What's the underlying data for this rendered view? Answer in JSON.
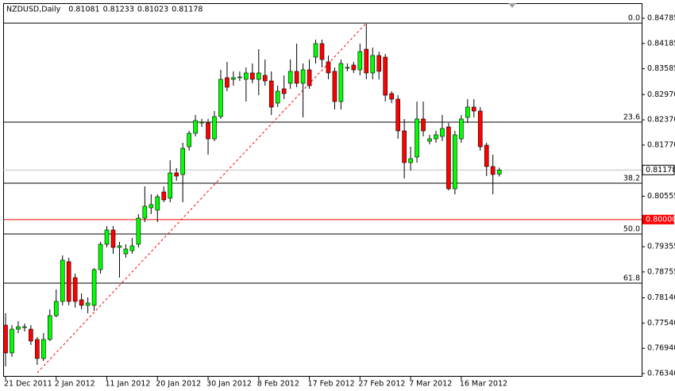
{
  "chart_data": {
    "type": "candlestick",
    "title": "NZDUSD,Daily",
    "header_ohlc": [
      0.81081,
      0.81233,
      0.81023,
      0.81178
    ],
    "categories": [
      "21 Dec 2011",
      null,
      null,
      null,
      null,
      null,
      null,
      null,
      "2 Jan 2012",
      null,
      null,
      null,
      null,
      null,
      null,
      null,
      "11 Jan 2012",
      null,
      null,
      null,
      null,
      null,
      null,
      null,
      "20 Jan 2012",
      null,
      null,
      null,
      null,
      null,
      null,
      null,
      "30 Jan 2012",
      null,
      null,
      null,
      null,
      null,
      null,
      null,
      "8 Feb 2012",
      null,
      null,
      null,
      null,
      null,
      null,
      null,
      "17 Feb 2012",
      null,
      null,
      null,
      null,
      null,
      null,
      null,
      "27 Feb 2012",
      null,
      null,
      null,
      null,
      null,
      null,
      null,
      "7 Mar 2012",
      null,
      null,
      null,
      null,
      null,
      null,
      null,
      "16 Mar 2012",
      null,
      null,
      null,
      null,
      null,
      null
    ],
    "open": [
      0.7749,
      0.7683,
      0.77395,
      0.77433,
      0.77395,
      0.7715,
      0.76698,
      0.7715,
      0.77716,
      0.78055,
      0.78998,
      0.7862,
      0.78093,
      0.77961,
      0.77961,
      0.78809,
      0.79412,
      0.79752,
      0.79337,
      0.79186,
      0.79261,
      0.79412,
      0.80034,
      0.80279,
      0.80223,
      0.80656,
      0.80506,
      0.81109,
      0.81071,
      0.81731,
      0.82051,
      0.82296,
      0.82296,
      0.81919,
      0.82447,
      0.83371,
      0.83333,
      0.83371,
      0.83333,
      0.83484,
      0.83333,
      0.83427,
      0.83295,
      0.82768,
      0.83107,
      0.83239,
      0.83522,
      0.83239,
      0.83559,
      0.83861,
      0.84181,
      0.83748,
      0.83522,
      0.82805,
      0.83597,
      0.83672,
      0.83559,
      0.84049,
      0.83484,
      0.83899,
      0.83861,
      0.82994,
      0.82862,
      0.82108,
      0.81354,
      0.81486,
      0.82391,
      0.81863,
      0.81919,
      0.81976,
      0.82202,
      0.80732,
      0.81919,
      0.82428,
      0.82673,
      0.82579,
      0.81768,
      0.8126,
      0.81081
    ],
    "high": [
      0.77772,
      0.7749,
      0.77584,
      0.77527,
      0.7749,
      0.77207,
      0.77301,
      0.77867,
      0.78338,
      0.79148,
      0.79092,
      0.78715,
      0.78244,
      0.78149,
      0.78847,
      0.79469,
      0.79846,
      0.79846,
      0.79469,
      0.79412,
      0.79563,
      0.80129,
      0.80788,
      0.806,
      0.806,
      0.80788,
      0.8141,
      0.81222,
      0.81825,
      0.82108,
      0.82485,
      0.82391,
      0.82391,
      0.82579,
      0.83559,
      0.83748,
      0.83522,
      0.83522,
      0.83616,
      0.8371,
      0.84049,
      0.83804,
      0.83522,
      0.83182,
      0.83427,
      0.83804,
      0.84181,
      0.8371,
      0.83804,
      0.84276,
      0.84276,
      0.83899,
      0.83616,
      0.83804,
      0.8371,
      0.83748,
      0.84181,
      0.84653,
      0.84087,
      0.83993,
      0.83936,
      0.8305,
      0.82956,
      0.82391,
      0.81731,
      0.82805,
      0.82805,
      0.82014,
      0.82108,
      0.82485,
      0.82296,
      0.82108,
      0.82485,
      0.82862,
      0.82862,
      0.82673,
      0.81825,
      0.81542,
      0.81233
    ],
    "low": [
      0.76509,
      0.76736,
      0.77301,
      0.77339,
      0.77018,
      0.76548,
      0.76641,
      0.77113,
      0.77678,
      0.77961,
      0.77961,
      0.77904,
      0.77867,
      0.77772,
      0.77829,
      0.78715,
      0.79337,
      0.79186,
      0.7862,
      0.79092,
      0.79186,
      0.79337,
      0.7994,
      0.80129,
      0.7994,
      0.80411,
      0.80411,
      0.8092,
      0.80411,
      0.81637,
      0.81976,
      0.82202,
      0.81542,
      0.81863,
      0.82391,
      0.8305,
      0.83182,
      0.83295,
      0.82805,
      0.83239,
      0.82956,
      0.83182,
      0.82485,
      0.82673,
      0.82862,
      0.83107,
      0.83145,
      0.82428,
      0.83107,
      0.8371,
      0.83616,
      0.83333,
      0.82617,
      0.82617,
      0.83522,
      0.83484,
      0.83427,
      0.83333,
      0.83333,
      0.83333,
      0.82805,
      0.82768,
      0.81919,
      0.80977,
      0.81165,
      0.81354,
      0.81976,
      0.81787,
      0.81825,
      0.81863,
      0.80694,
      0.806,
      0.81825,
      0.82296,
      0.82428,
      0.81637,
      0.81033,
      0.806,
      0.81023
    ],
    "close": [
      0.7683,
      0.77395,
      0.77452,
      0.77452,
      0.77113,
      0.76698,
      0.7715,
      0.77716,
      0.78055,
      0.79035,
      0.78055,
      0.78055,
      0.77961,
      0.78017,
      0.78809,
      0.79412,
      0.79752,
      0.79337,
      0.79375,
      0.79299,
      0.79375,
      0.80034,
      0.80317,
      0.80355,
      0.80543,
      0.80468,
      0.81109,
      0.81033,
      0.81693,
      0.82051,
      0.82353,
      0.82316,
      0.81919,
      0.82447,
      0.83333,
      0.83145,
      0.83371,
      0.8339,
      0.83484,
      0.83333,
      0.83484,
      0.83295,
      0.82673,
      0.8305,
      0.82994,
      0.83522,
      0.83239,
      0.83559,
      0.83182,
      0.84181,
      0.83804,
      0.83484,
      0.82805,
      0.8371,
      0.83616,
      0.83559,
      0.83993,
      0.83484,
      0.83899,
      0.83522,
      0.82956,
      0.82862,
      0.82108,
      0.81354,
      0.81448,
      0.82391,
      0.82108,
      0.81919,
      0.82014,
      0.82164,
      0.80732,
      0.82014,
      0.82391,
      0.82673,
      0.82579,
      0.81731,
      0.8126,
      0.81071,
      0.81178
    ],
    "up_color": "#00ff00",
    "down_color": "#ff0000",
    "ylim": [
      0.76302,
      0.85124
    ],
    "yticks": [
      0.84785,
      0.84185,
      0.83585,
      {
        "value": 0.8297,
        "label": "0.82970"
      },
      {
        "value": 0.8237,
        "label": "0.82370"
      },
      {
        "value": 0.8177,
        "label": "0.81770"
      },
      0.80555,
      0.79355,
      0.78755,
      {
        "value": 0.7814,
        "label": "0.78140"
      },
      {
        "value": 0.7754,
        "label": "0.77540"
      },
      {
        "value": 0.7694,
        "label": "0.76940"
      },
      {
        "value": 0.7634,
        "label": "0.76340"
      }
    ],
    "price_line": {
      "value": 0.81178,
      "color": "#c0c0c0"
    },
    "level_line": {
      "value": 0.8,
      "label": "0.80000",
      "color": "#ff0000"
    },
    "fibo": {
      "color": "#ff0000",
      "anchor_from": [
        5,
        0.76358
      ],
      "anchor_to": [
        57,
        0.8467
      ],
      "levels": [
        {
          "label": "0.0",
          "price": 0.8467
        },
        {
          "label": "23.6",
          "price": 0.82316
        },
        {
          "label": "38.2",
          "price": 0.80864
        },
        {
          "label": "50.0",
          "price": 0.79658
        },
        {
          "label": "61.8",
          "price": 0.78489
        }
      ]
    }
  }
}
